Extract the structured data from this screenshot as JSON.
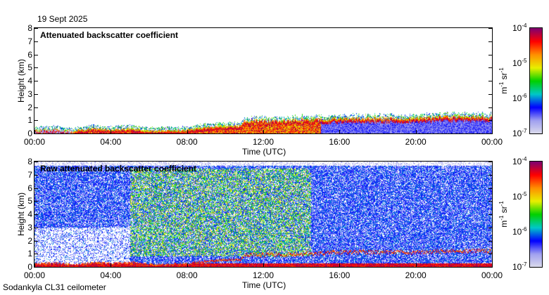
{
  "header": {
    "date": "19 Sept 2025"
  },
  "footer": {
    "station": "Sodankyla CL31 ceilometer"
  },
  "colors": {
    "cmap": [
      "#dcdcec",
      "#a0a0f0",
      "#0000ff",
      "#00c8c8",
      "#00d000",
      "#e8f000",
      "#ff9000",
      "#ff0000",
      "#800070"
    ]
  },
  "chart_data": [
    {
      "type": "heatmap",
      "title": "Attenuated backscatter coefficient",
      "xlabel": "Time (UTC)",
      "ylabel": "Height (km)",
      "xticks": [
        "00:00",
        "04:00",
        "08:00",
        "12:00",
        "16:00",
        "20:00",
        "00:00"
      ],
      "yticks": [
        "0",
        "1",
        "2",
        "3",
        "4",
        "5",
        "6",
        "7",
        "8"
      ],
      "xlim": [
        0,
        24
      ],
      "ylim": [
        0,
        8
      ],
      "colorbar": {
        "label_base": "m",
        "label_exp1": "-1",
        "label_mid": " sr",
        "label_exp2": "-1",
        "ticks": [
          {
            "base": "10",
            "exp": "-4"
          },
          {
            "base": "10",
            "exp": "-5"
          },
          {
            "base": "10",
            "exp": "-6"
          },
          {
            "base": "10",
            "exp": "-7"
          }
        ],
        "range": [
          1e-07,
          0.0001
        ],
        "scale": "log"
      },
      "layer_top_km": {
        "time_h": [
          0,
          1,
          2,
          3,
          4,
          5,
          6,
          7,
          8,
          9,
          10,
          10.8,
          11,
          12,
          13,
          14,
          15,
          16,
          18,
          20,
          22,
          24
        ],
        "height": [
          0.3,
          0.35,
          0.2,
          0.4,
          0.3,
          0.4,
          0.25,
          0.25,
          0.3,
          0.5,
          0.6,
          0.6,
          1.0,
          1.0,
          1.0,
          1.1,
          1.1,
          1.2,
          1.2,
          1.2,
          1.3,
          1.3
        ]
      }
    },
    {
      "type": "heatmap",
      "title": "Raw attenuated backscatter coefficient",
      "xlabel": "Time (UTC)",
      "ylabel": "Height (km)",
      "xticks": [
        "00:00",
        "04:00",
        "08:00",
        "12:00",
        "16:00",
        "20:00",
        "00:00"
      ],
      "yticks": [
        "0",
        "1",
        "2",
        "3",
        "4",
        "5",
        "6",
        "7",
        "8"
      ],
      "xlim": [
        0,
        24
      ],
      "ylim": [
        0,
        8
      ],
      "colorbar": {
        "label_base": "m",
        "label_exp1": "-1",
        "label_mid": " sr",
        "label_exp2": "-1",
        "ticks": [
          {
            "base": "10",
            "exp": "-4"
          },
          {
            "base": "10",
            "exp": "-5"
          },
          {
            "base": "10",
            "exp": "-6"
          },
          {
            "base": "10",
            "exp": "-7"
          }
        ],
        "range": [
          1e-07,
          0.0001
        ],
        "scale": "log"
      }
    }
  ]
}
